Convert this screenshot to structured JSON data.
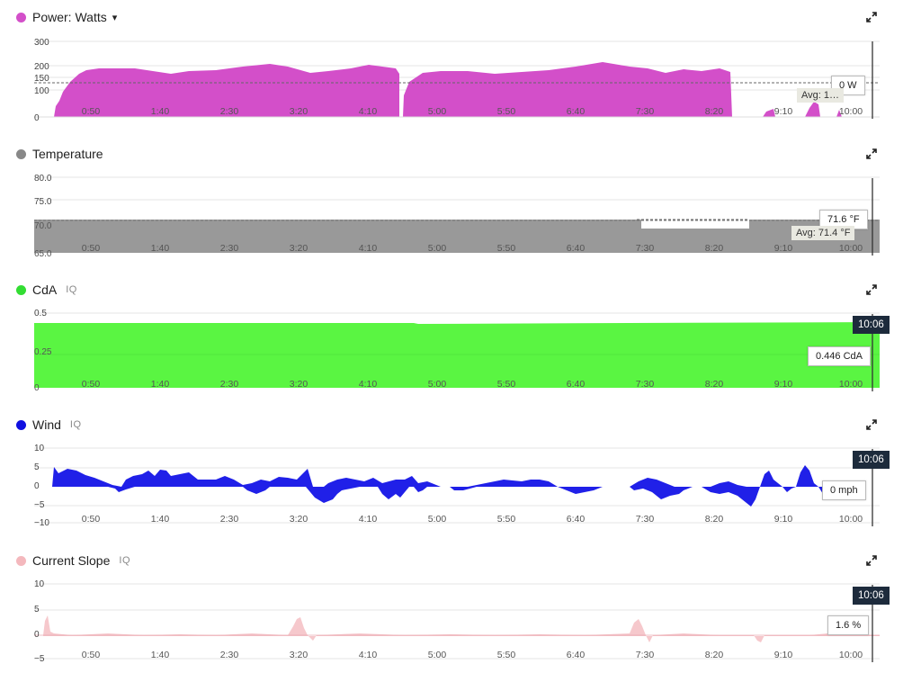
{
  "x_ticks": [
    "0:50",
    "1:40",
    "2:30",
    "3:20",
    "4:10",
    "5:00",
    "5:50",
    "6:40",
    "7:30",
    "8:20",
    "9:10",
    "10:00"
  ],
  "cursor_time": "10:06",
  "panels": {
    "power": {
      "title": "Power: Watts",
      "caret": "▾",
      "color": "#d34fc9",
      "y_ticks": [
        "300",
        "200",
        "150",
        "100",
        "0"
      ],
      "tooltip": "0 W",
      "avg_label": "Avg: 1…"
    },
    "temperature": {
      "title": "Temperature",
      "color": "#888888",
      "y_ticks": [
        "80.0",
        "75.0",
        "70.0",
        "65.0"
      ],
      "tooltip": "71.6 °F",
      "avg_label": "Avg: 71.4 °F"
    },
    "cda": {
      "title": "CdA",
      "iq": "IQ",
      "color": "#33dd33",
      "y_ticks": [
        "0.5",
        "0.25",
        "0"
      ],
      "tooltip": "0.446 CdA"
    },
    "wind": {
      "title": "Wind",
      "iq": "IQ",
      "color": "#1010e0",
      "y_ticks": [
        "10",
        "5",
        "0",
        "−5",
        "−10"
      ],
      "tooltip": "0 mph"
    },
    "slope": {
      "title": "Current Slope",
      "iq": "IQ",
      "color": "#f4b8bd",
      "y_ticks": [
        "10",
        "5",
        "0",
        "−5"
      ],
      "tooltip": "1.6 %"
    }
  },
  "icons": {
    "dropdown": "caret-down-icon",
    "expand": "expand-icon"
  }
}
